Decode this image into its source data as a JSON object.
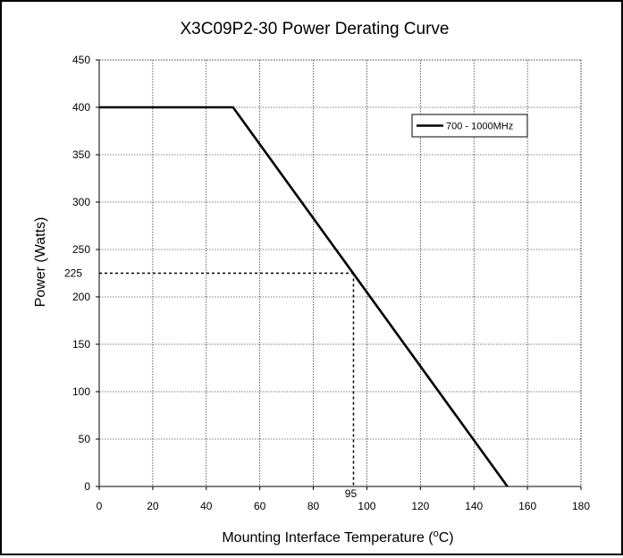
{
  "chart_data": {
    "type": "line",
    "title": "X3C09P2-30 Power Derating Curve",
    "xlabel_main": "Mounting Interface Temperature (",
    "xlabel_sup": "o",
    "xlabel_end": "C)",
    "ylabel": "Power (Watts)",
    "xlim": [
      0,
      180
    ],
    "ylim": [
      0,
      450
    ],
    "xticks": [
      0,
      20,
      40,
      60,
      80,
      100,
      120,
      140,
      160,
      180
    ],
    "yticks": [
      0,
      50,
      100,
      150,
      200,
      250,
      300,
      350,
      400,
      450
    ],
    "grid": true,
    "legend_position": "top-right",
    "series": [
      {
        "name": "700 - 1000MHz",
        "color": "#000000",
        "points": [
          [
            0,
            400
          ],
          [
            50,
            400
          ],
          [
            152.5,
            0
          ]
        ]
      }
    ],
    "annotations": {
      "x_marker": 95,
      "y_marker": 225,
      "x_label": "95",
      "y_label": "225"
    }
  }
}
